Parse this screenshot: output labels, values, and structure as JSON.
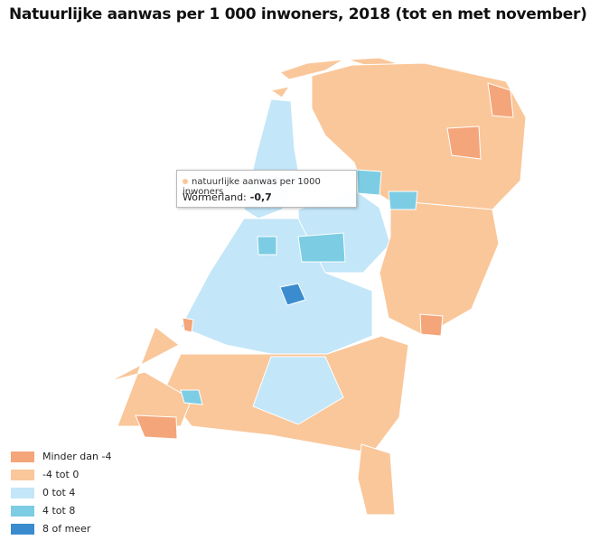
{
  "header": {
    "title": "Natuurlijke aanwas per 1 000 inwoners, 2018 (tot en met november)"
  },
  "legend": {
    "items": [
      {
        "label": "Minder dan -4",
        "color": "#f4a57a"
      },
      {
        "label": "-4 tot 0",
        "color": "#fac79a"
      },
      {
        "label": "0 tot 4",
        "color": "#c3e6f8"
      },
      {
        "label": "4 tot 8",
        "color": "#7ccde3"
      },
      {
        "label": "8 of meer",
        "color": "#3a8cce"
      }
    ]
  },
  "tooltip": {
    "series": "natuurlijke aanwas per 1000 inwoners",
    "region": "Wormerland:",
    "value": "-0,7"
  }
}
